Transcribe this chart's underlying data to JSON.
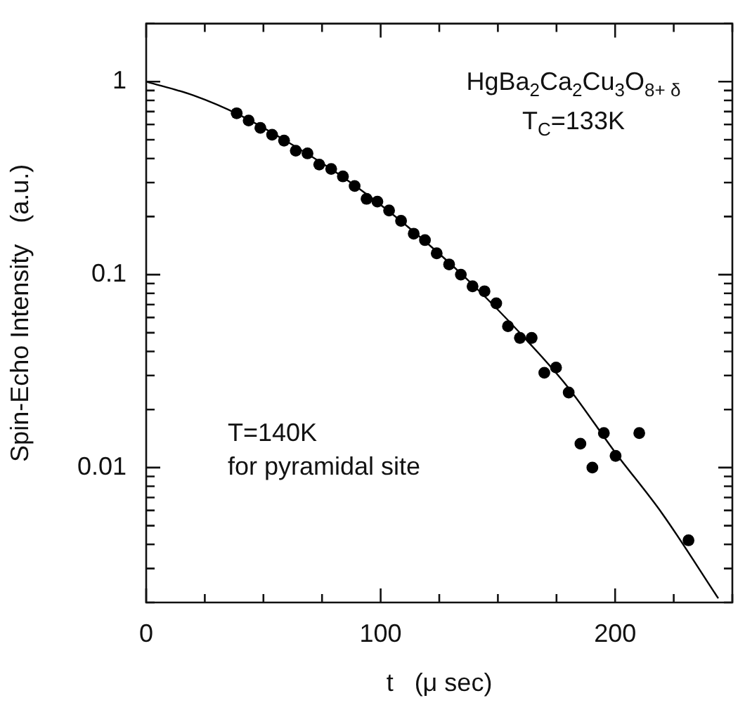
{
  "chart_data": {
    "type": "scatter",
    "xlabel": "t   (μ sec)",
    "ylabel": "Spin-Echo Intensity   (a.u.)",
    "annotations": [
      "HgBa$_{2}$Ca$_{2}$Cu$_{3}$O$_{8+ δ}$",
      "T$_{C}$=133K",
      "T=140K",
      "for pyramidal site"
    ],
    "series": [
      {
        "type": "scatter",
        "color": "#000000",
        "marker": "circle",
        "x": [
          38.6,
          43.7,
          48.7,
          53.7,
          58.8,
          63.8,
          68.8,
          73.8,
          78.9,
          83.9,
          88.9,
          94,
          98.6,
          103.6,
          108.7,
          114.1,
          118.9,
          123.9,
          129.2,
          134.2,
          139.2,
          144.3,
          149.3,
          154.3,
          159.4,
          164.4,
          169.8,
          174.8,
          180.2,
          185.2,
          190.3,
          195.2,
          200.2,
          210.3,
          231.3
        ],
        "values": [
          0.686,
          0.629,
          0.576,
          0.531,
          0.495,
          0.439,
          0.425,
          0.372,
          0.353,
          0.323,
          0.288,
          0.247,
          0.239,
          0.215,
          0.19,
          0.163,
          0.151,
          0.129,
          0.113,
          0.1,
          0.087,
          0.082,
          0.071,
          0.054,
          0.047,
          0.047,
          0.031,
          0.033,
          0.0245,
          0.0133,
          0.01,
          0.0151,
          0.0115,
          0.0151,
          0.0042
        ]
      },
      {
        "type": "line",
        "color": "#000000",
        "marker": "none",
        "line_style": "solid",
        "x": [
          0,
          20,
          40,
          60,
          80,
          100,
          120,
          140,
          160,
          180,
          200,
          220,
          244
        ],
        "values": [
          1,
          0.85,
          0.67,
          0.49,
          0.345,
          0.23,
          0.145,
          0.087,
          0.049,
          0.026,
          0.012,
          0.0058,
          0.0021
        ]
      }
    ],
    "xlim": [
      0,
      250
    ],
    "xticks": [
      0,
      {
        "value": 25,
        "label": null
      },
      {
        "value": 50,
        "label": null
      },
      {
        "value": 75,
        "label": null
      },
      100,
      {
        "value": 125,
        "label": null
      },
      {
        "value": 150,
        "label": null
      },
      {
        "value": 175,
        "label": null
      },
      200,
      {
        "value": 225,
        "label": null
      },
      {
        "value": 250,
        "label": null
      }
    ],
    "ylim": [
      0.002,
      2
    ],
    "log": "y",
    "yticks": [
      {
        "value": 0.002,
        "label": null
      },
      {
        "value": 0.003,
        "label": null
      },
      {
        "value": 0.004,
        "label": null
      },
      {
        "value": 0.005,
        "label": null
      },
      {
        "value": 0.006,
        "label": null
      },
      {
        "value": 0.007,
        "label": null
      },
      {
        "value": 0.008,
        "label": null
      },
      {
        "value": 0.009,
        "label": null
      },
      0.01,
      {
        "value": 0.02,
        "label": null
      },
      {
        "value": 0.03,
        "label": null
      },
      {
        "value": 0.04,
        "label": null
      },
      {
        "value": 0.05,
        "label": null
      },
      {
        "value": 0.06,
        "label": null
      },
      {
        "value": 0.07,
        "label": null
      },
      {
        "value": 0.08,
        "label": null
      },
      {
        "value": 0.09,
        "label": null
      },
      0.1,
      {
        "value": 0.2,
        "label": null
      },
      {
        "value": 0.3,
        "label": null
      },
      {
        "value": 0.4,
        "label": null
      },
      {
        "value": 0.5,
        "label": null
      },
      {
        "value": 0.6,
        "label": null
      },
      {
        "value": 0.7,
        "label": null
      },
      {
        "value": 0.8,
        "label": null
      },
      {
        "value": 0.9,
        "label": null
      },
      1,
      {
        "value": 2,
        "label": null
      }
    ],
    "grid": false,
    "legend": false
  }
}
